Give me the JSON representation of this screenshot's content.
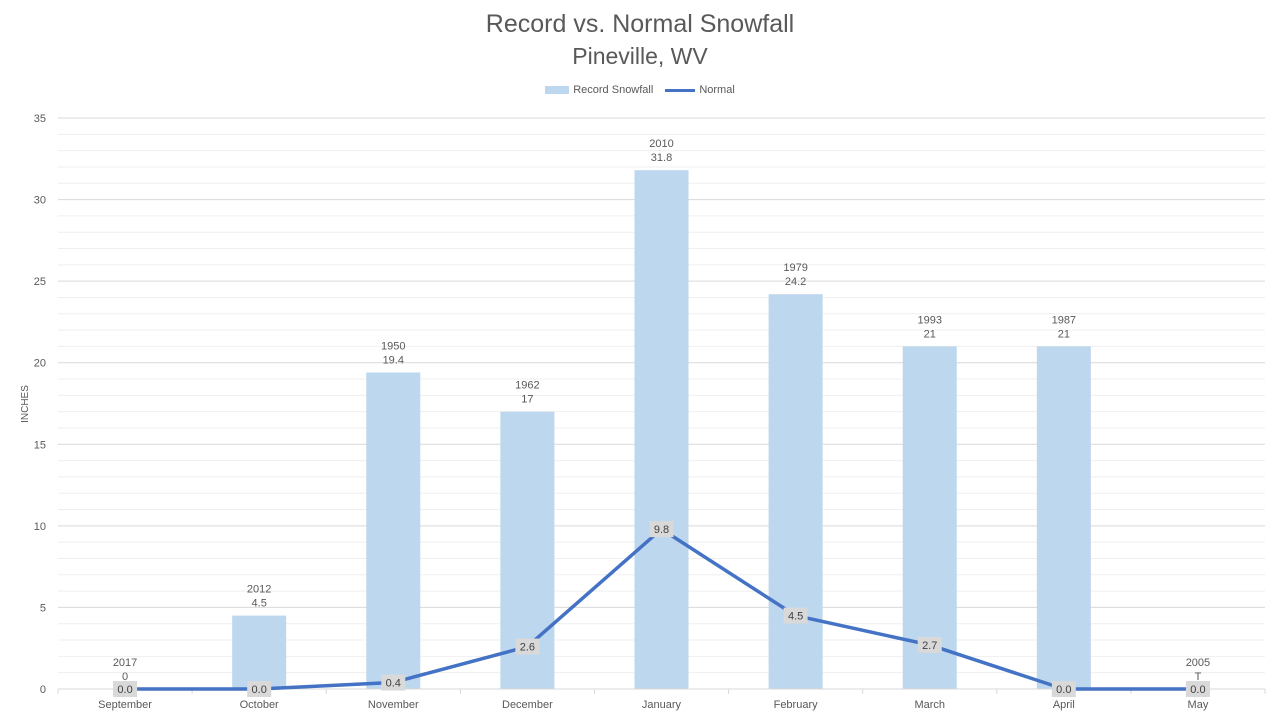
{
  "title": "Record vs. Normal Snowfall",
  "subtitle": "Pineville, WV",
  "legend": {
    "record_label": "Record Snowfall",
    "normal_label": "Normal"
  },
  "colors": {
    "bar": "#bdd7ee",
    "line": "#4472c4",
    "grid": "#d9d9d9",
    "text": "#595959",
    "label_bg": "#d9d9d9"
  },
  "chart_data": {
    "type": "bar",
    "categories": [
      "September",
      "October",
      "November",
      "December",
      "January",
      "February",
      "March",
      "April",
      "May"
    ],
    "series": [
      {
        "name": "Record Snowfall",
        "type": "bar",
        "values": [
          0,
          4.5,
          19.4,
          17,
          31.8,
          24.2,
          21,
          21,
          0
        ],
        "years": [
          "2017",
          "2012",
          "1950",
          "1962",
          "2010",
          "1979",
          "1993",
          "1987",
          "2005"
        ],
        "value_labels": [
          "0",
          "4.5",
          "19.4",
          "17",
          "31.8",
          "24.2",
          "21",
          "21",
          "T"
        ]
      },
      {
        "name": "Normal",
        "type": "line",
        "values": [
          0.0,
          0.0,
          0.4,
          2.6,
          9.8,
          4.5,
          2.7,
          0.0,
          0.0
        ],
        "value_labels": [
          "0.0",
          "0.0",
          "0.4",
          "2.6",
          "9.8",
          "4.5",
          "2.7",
          "0.0",
          "0.0"
        ]
      }
    ],
    "ylabel": "INCHES",
    "xlabel": "",
    "ylim": [
      0,
      35
    ],
    "yticks": [
      0,
      5,
      10,
      15,
      20,
      25,
      30,
      35
    ],
    "grid": true,
    "legend_position": "top"
  }
}
